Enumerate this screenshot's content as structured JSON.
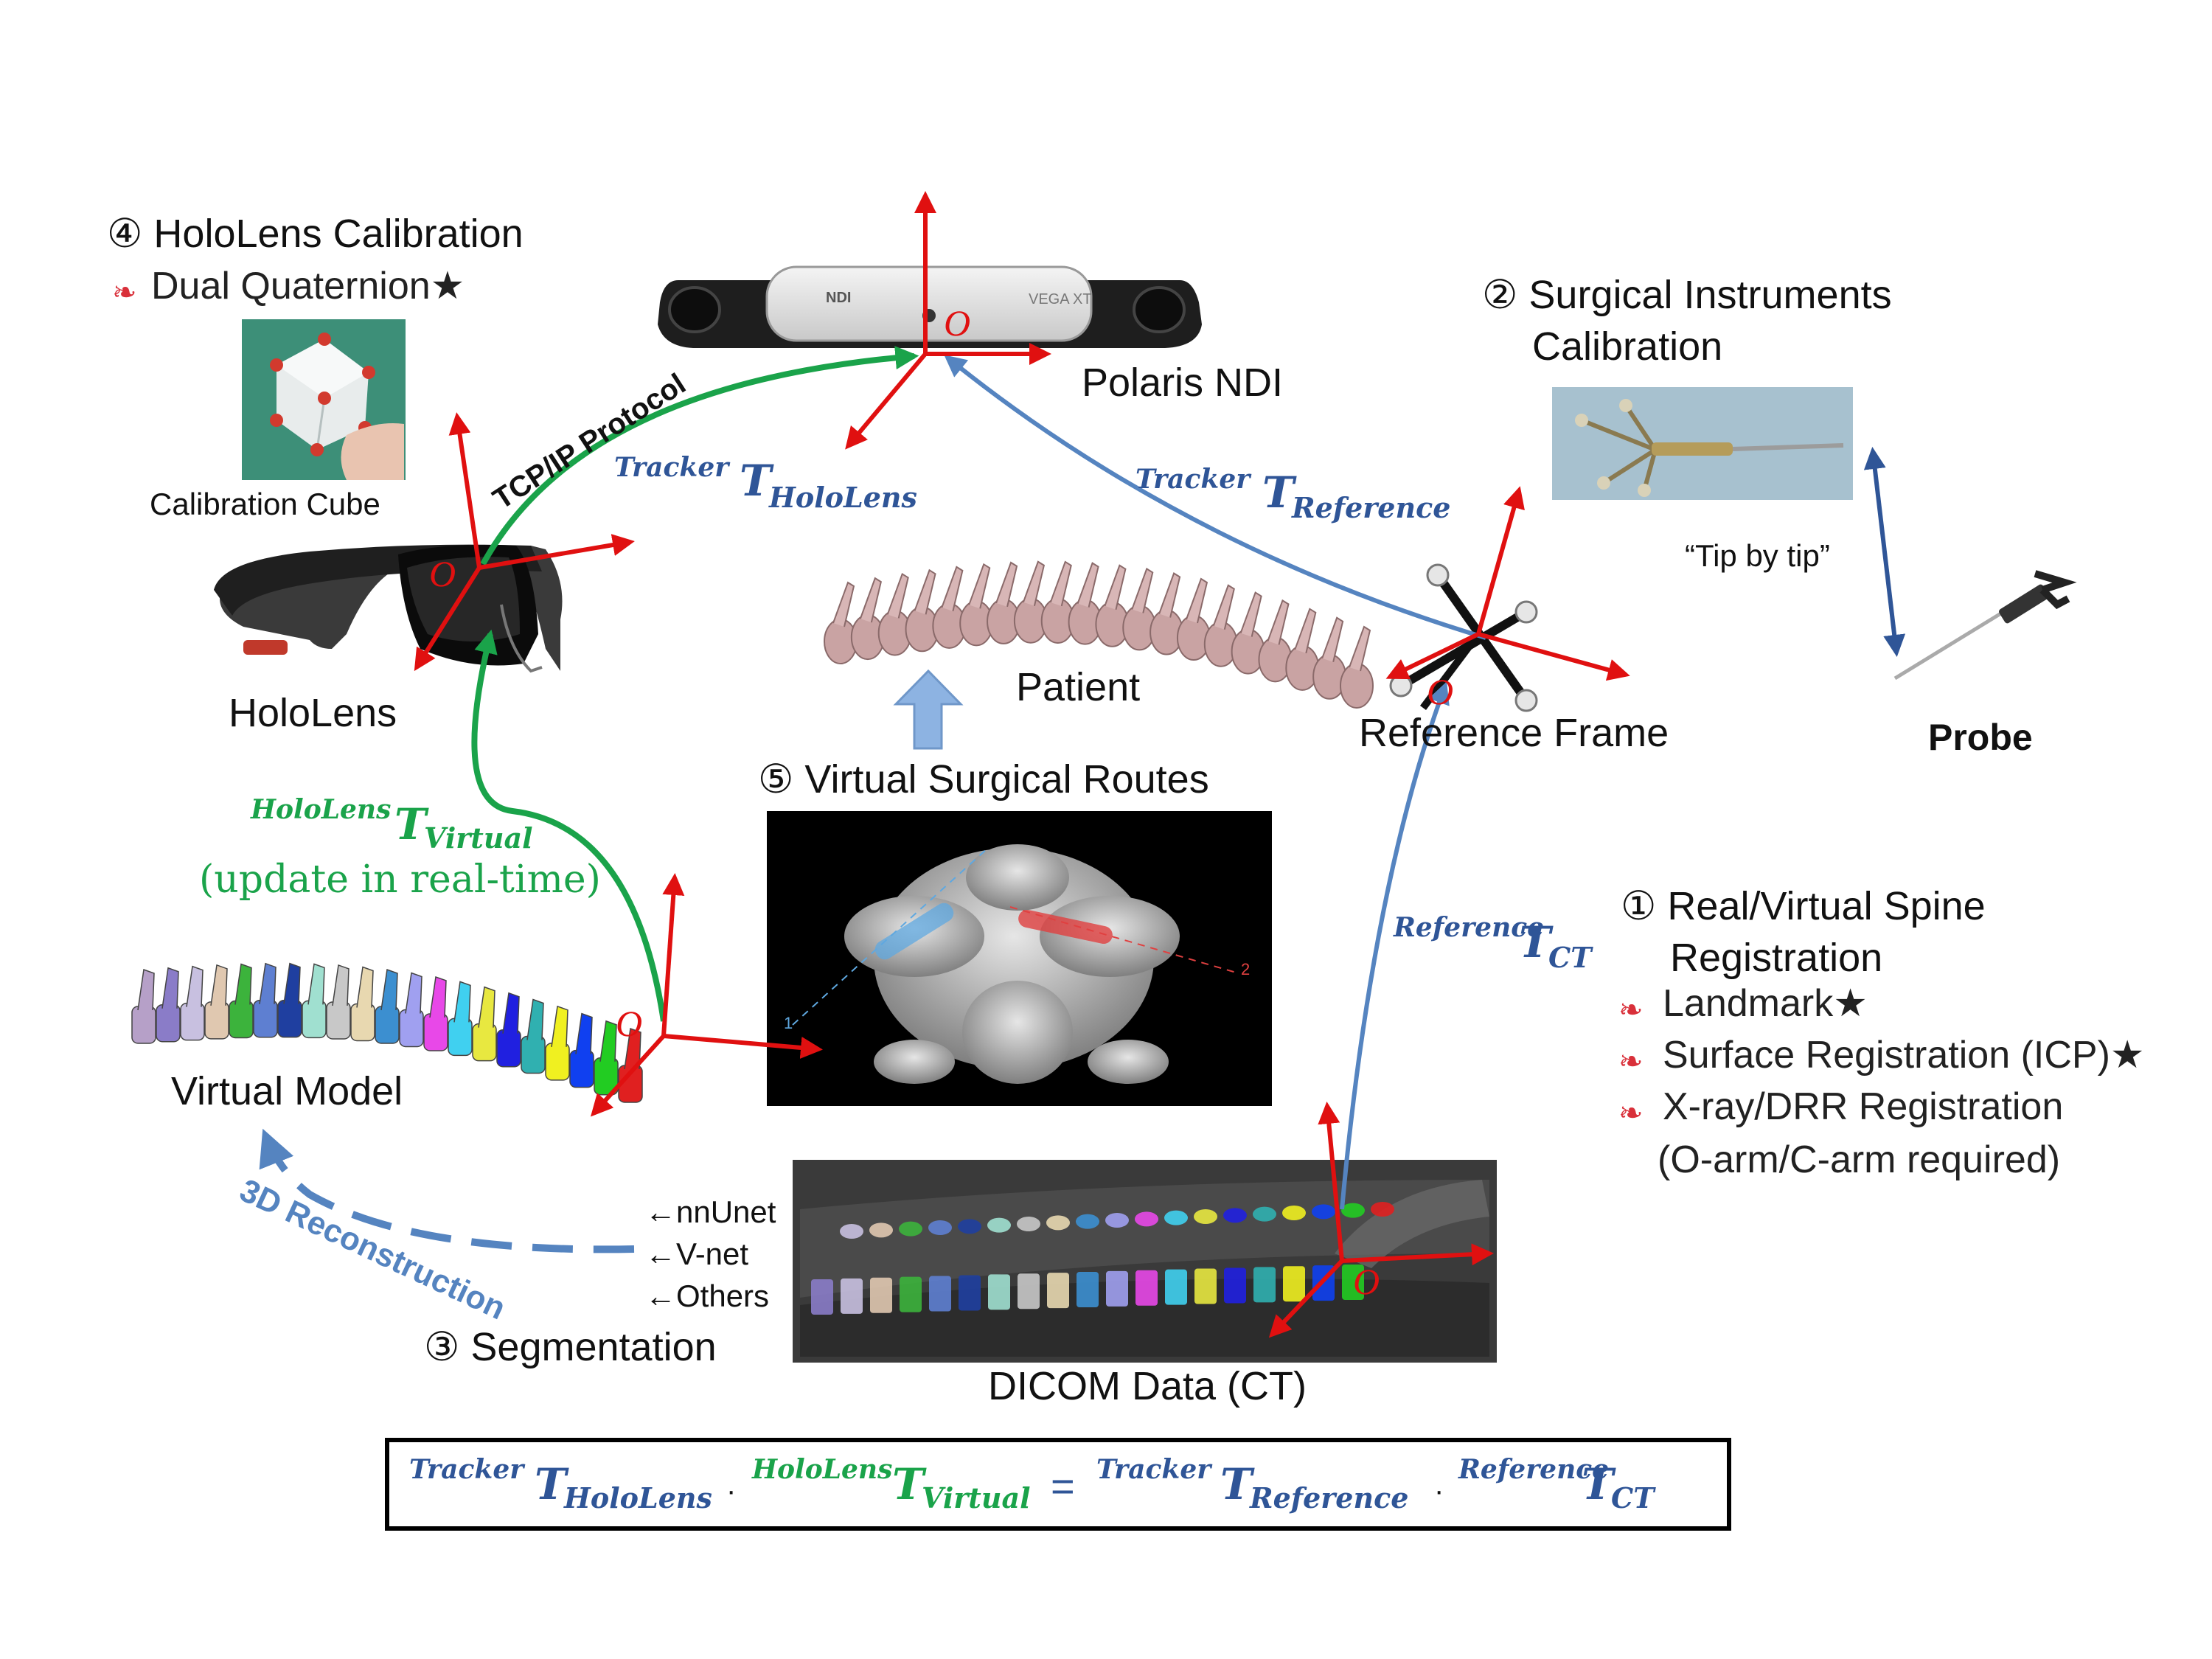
{
  "colors": {
    "axis": "#e01010",
    "green": "#1aa34a",
    "blue": "#5584c0",
    "dark_blue": "#2f5597",
    "bullet_red": "#d9303a",
    "seg_panel": "#3a3a3a",
    "route_panel": "#000000"
  },
  "sections": {
    "hololens_calibration": {
      "title": "④ HoloLens Calibration",
      "bullets": [
        "Dual Quaternion★"
      ],
      "image_caption": "Calibration Cube"
    },
    "instruments_calibration": {
      "title_line1": "② Surgical Instruments",
      "title_line2": "Calibration",
      "tip_label": "“Tip by tip”",
      "probe_label": "Probe"
    },
    "registration": {
      "title_line1": "① Real/Virtual Spine",
      "title_line2": "Registration",
      "bullets": [
        "Landmark★",
        "Surface Registration (ICP)★",
        "X-ray/DRR Registration",
        "(O-arm/C-arm required)"
      ]
    },
    "routes": {
      "title": "⑤ Virtual Surgical Routes",
      "route_labels": [
        "1",
        "2"
      ]
    },
    "segmentation": {
      "title": "③ Segmentation",
      "methods": [
        "←nnUnet",
        "←V-net",
        "←Others"
      ],
      "data_label": "DICOM Data (CT)"
    }
  },
  "labels": {
    "polaris": "Polaris NDI",
    "device_brand": "NDI",
    "device_model": "VEGA XT",
    "hololens": "HoloLens",
    "patient": "Patient",
    "reference_frame": "Reference Frame",
    "virtual_model": "Virtual Model",
    "tcp": "TCP/IP Protocol",
    "reconstruction": "3D Reconstruction",
    "update": "(update in real-time)",
    "origin": "O"
  },
  "transforms": {
    "tracker_hololens": {
      "sup": "Tracker",
      "main": "T",
      "sub": "HoloLens"
    },
    "tracker_reference": {
      "sup": "Tracker",
      "main": "T",
      "sub": "Reference"
    },
    "hololens_virtual": {
      "sup": "HoloLens",
      "main": "T",
      "sub": "Virtual"
    },
    "reference_ct": {
      "sup": "Reference",
      "main": "T",
      "sub": "CT"
    }
  },
  "equation": {
    "dot": "·",
    "equals": "="
  }
}
